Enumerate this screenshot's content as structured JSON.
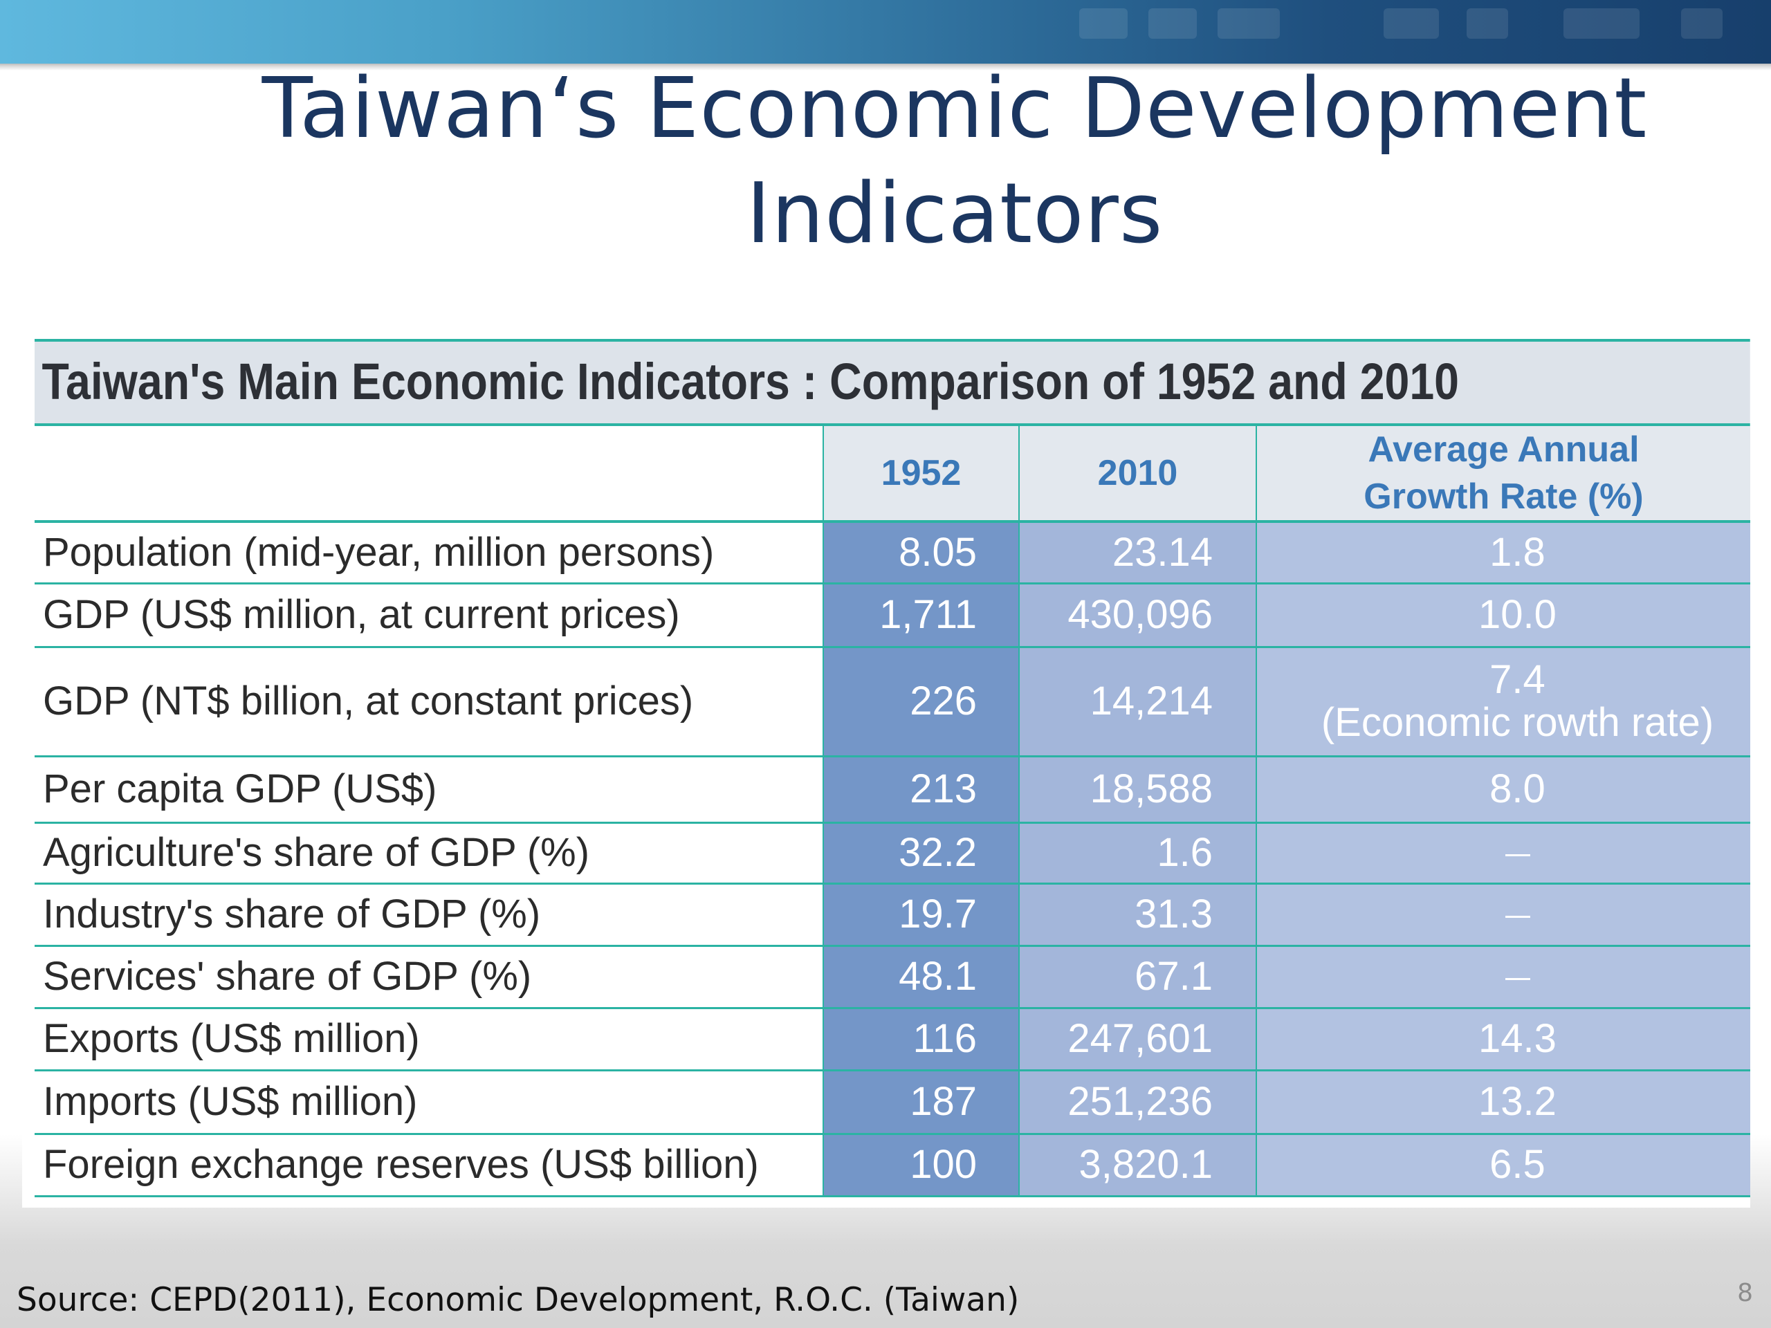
{
  "slide": {
    "title_line1": "Taiwan‘s Economic Development",
    "title_line2": "Indicators",
    "page_number": "8",
    "source": "Source: CEPD(2011), Economic Development, R.O.C. (Taiwan)"
  },
  "table": {
    "title": "Taiwan's Main Economic Indicators : Comparison of 1952 and 2010",
    "headers": [
      "",
      "1952",
      "2010",
      "Average Annual Growth Rate (%)"
    ],
    "rows": [
      {
        "label": "Population (mid-year, million persons)",
        "v1952": "8.05",
        "v2010": "23.14",
        "rate": "1.8"
      },
      {
        "label": "GDP (US$ million, at current prices)",
        "v1952": "1,711",
        "v2010": "430,096",
        "rate": "10.0"
      },
      {
        "label": "GDP (NT$ billion, at constant prices)",
        "v1952": "226",
        "v2010": "14,214",
        "rate": "7.4",
        "rate_note": "(Economic rowth rate)"
      },
      {
        "label": "Per capita GDP (US$)",
        "v1952": "213",
        "v2010": "18,588",
        "rate": "8.0"
      },
      {
        "label": "Agriculture's share of GDP (%)",
        "v1952": "32.2",
        "v2010": "1.6",
        "rate": "–"
      },
      {
        "label": "Industry's share of GDP (%)",
        "v1952": "19.7",
        "v2010": "31.3",
        "rate": "–"
      },
      {
        "label": "Services' share of GDP (%)",
        "v1952": "48.1",
        "v2010": "67.1",
        "rate": "–"
      },
      {
        "label": "Exports (US$ million)",
        "v1952": "116",
        "v2010": "247,601",
        "rate": "14.3"
      },
      {
        "label": "Imports (US$ million)",
        "v1952": "187",
        "v2010": "251,236",
        "rate": "13.2"
      },
      {
        "label": "Foreign exchange reserves (US$ billion)",
        "v1952": "100",
        "v2010": "3,820.1",
        "rate": "6.5"
      }
    ]
  }
}
